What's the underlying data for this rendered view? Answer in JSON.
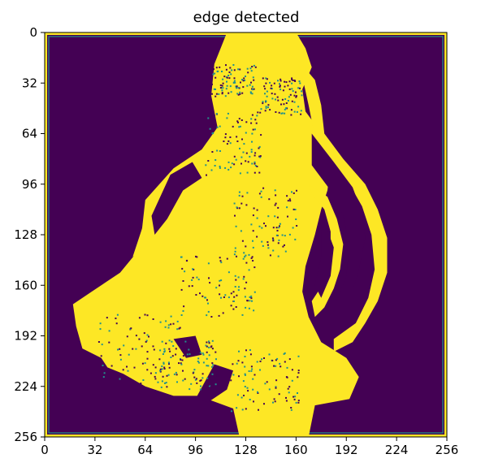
{
  "chart_data": {
    "type": "heatmap",
    "title": "edge detected",
    "xlabel": "",
    "ylabel": "",
    "xlim": [
      0,
      256
    ],
    "ylim": [
      256,
      0
    ],
    "xticks": [
      0,
      32,
      64,
      96,
      128,
      160,
      192,
      224,
      256
    ],
    "yticks": [
      0,
      32,
      64,
      96,
      128,
      160,
      192,
      224,
      256
    ],
    "colormap": "viridis",
    "colors": {
      "background": "#440154",
      "edge": "#fde725",
      "teal": "#21918c"
    },
    "shape_description": "binary edge map of a pear-like object; bright yellow pixels mark detected edges, dark purple is background, image border framed in yellow",
    "grid": false
  }
}
